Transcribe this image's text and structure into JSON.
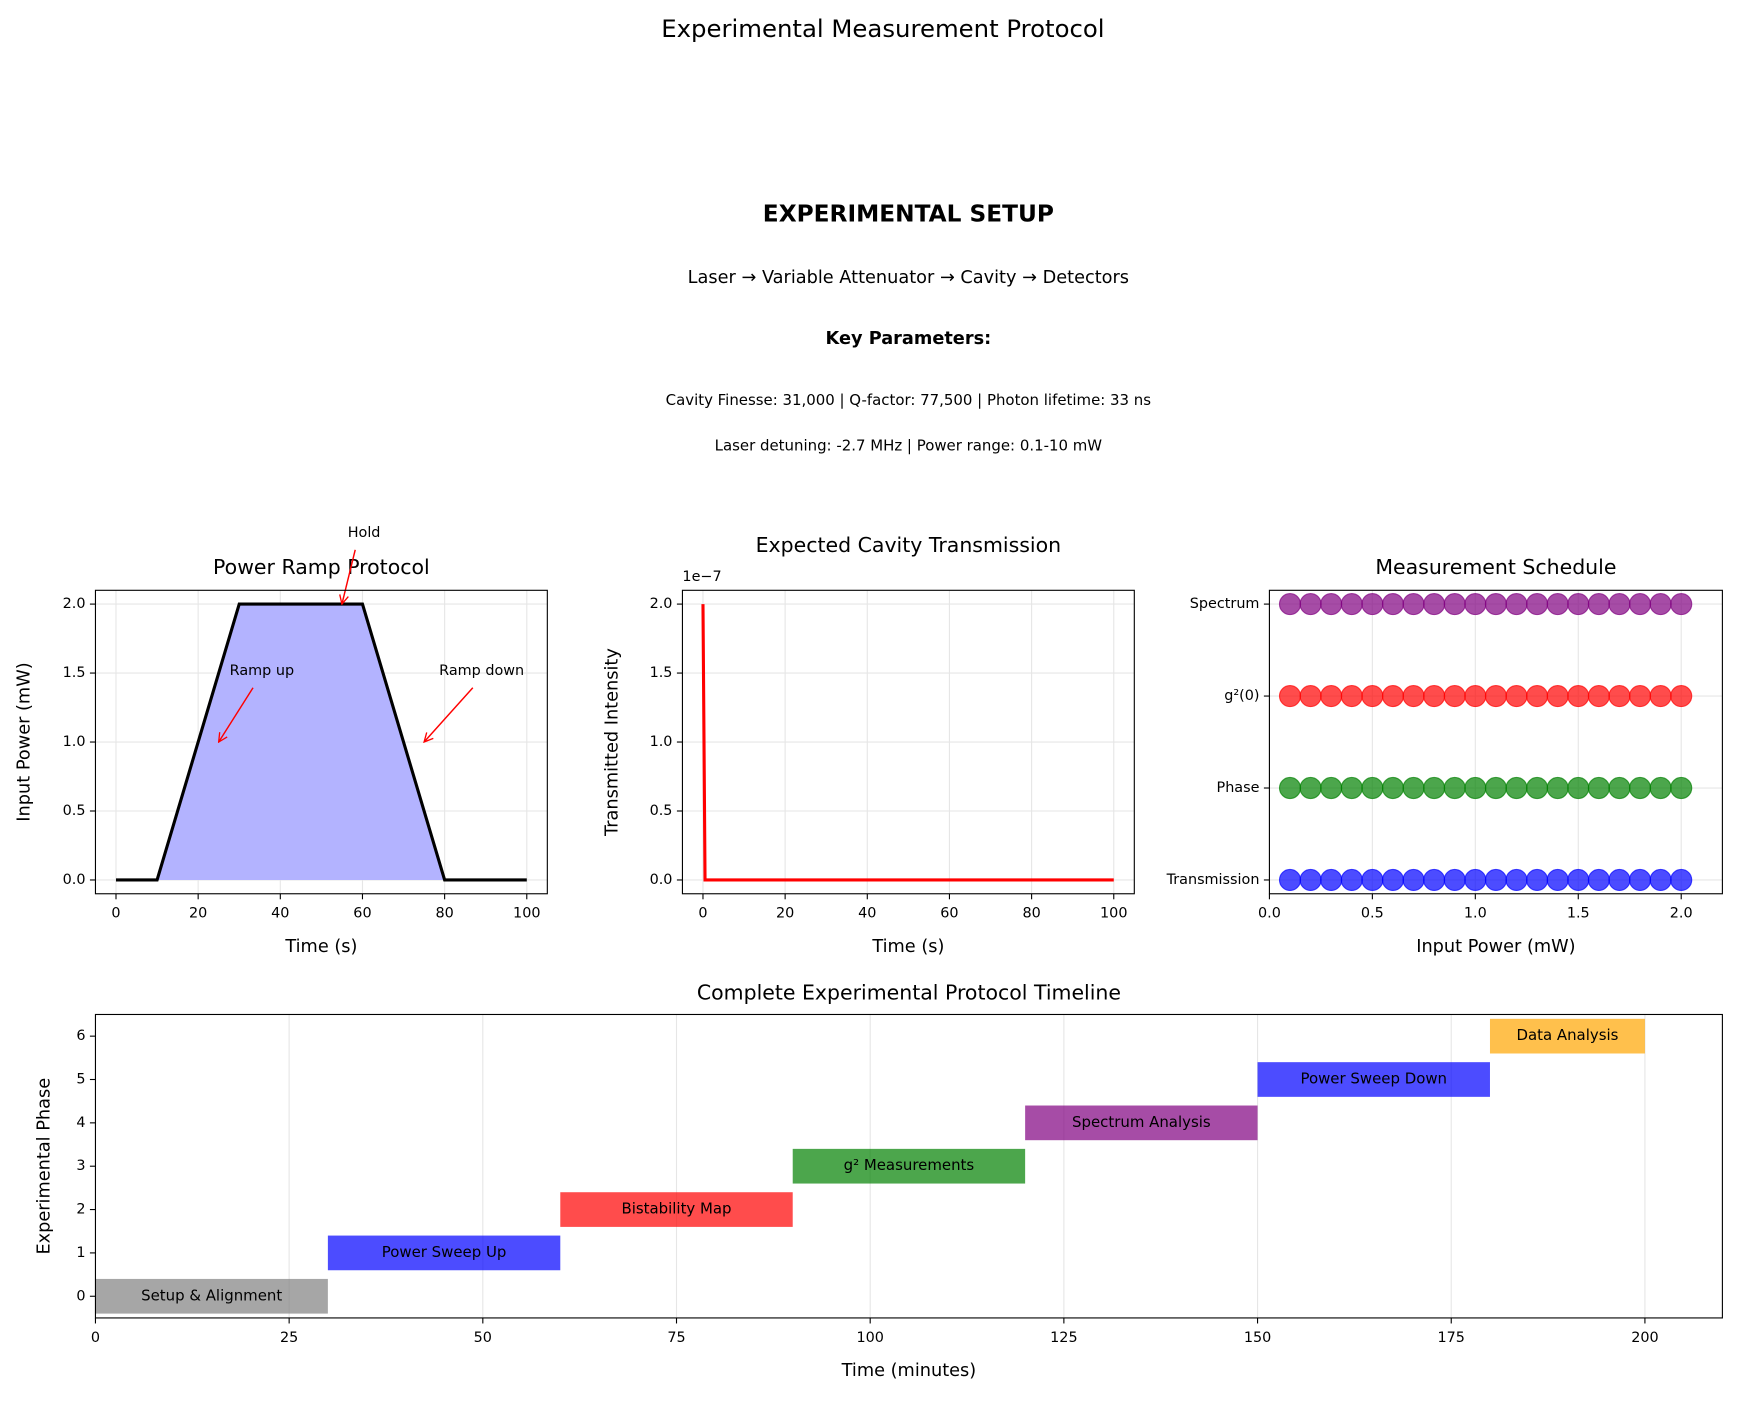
{
  "title": "Experimental Measurement Protocol",
  "setup": {
    "heading": "EXPERIMENTAL SETUP",
    "chain": "Laser → Variable Attenuator → Cavity → Detectors",
    "params_heading": "Key Parameters:",
    "params_lines": [
      "Cavity Finesse: 31,000 | Q-factor: 77,500 | Photon lifetime: 33 ns",
      "Laser detuning: -2.7 MHz | Power range: 0.1-10 mW"
    ]
  },
  "chart_data": [
    {
      "type": "line",
      "title": "Power Ramp Protocol",
      "xlabel": "Time (s)",
      "ylabel": "Input Power (mW)",
      "x": [
        0,
        10,
        30,
        60,
        80,
        100
      ],
      "y": [
        0,
        0,
        2,
        2,
        0,
        0
      ],
      "color": "#000000",
      "fill_color": "#b3b3ff",
      "xlim": [
        -5,
        105
      ],
      "ylim": [
        -0.1,
        2.1
      ],
      "xticks": [
        0,
        20,
        40,
        60,
        80,
        100
      ],
      "yticks": [
        {
          "value": 0,
          "label": "0.0"
        },
        {
          "value": 0.5,
          "label": "0.5"
        },
        {
          "value": 1,
          "label": "1.0"
        },
        {
          "value": 1.5,
          "label": "1.5"
        },
        {
          "value": 2,
          "label": "2.0"
        }
      ],
      "grid": "both",
      "annotations": [
        {
          "text": "Hold",
          "x": 55,
          "y": 2
        },
        {
          "text": "Ramp up",
          "x": 25,
          "y": 1
        },
        {
          "text": "Ramp down",
          "x": 75,
          "y": 1
        }
      ]
    },
    {
      "type": "line",
      "title": "Expected Cavity Transmission",
      "xlabel": "Time (s)",
      "ylabel": "Transmitted Intensity",
      "y_offset_label": "1e−7",
      "x": [
        0,
        0.5,
        100
      ],
      "y": [
        2e-07,
        0,
        0
      ],
      "color": "#ff0000",
      "xlim": [
        -5,
        105
      ],
      "ylim": [
        -1e-08,
        2.1e-07
      ],
      "xticks": [
        0,
        20,
        40,
        60,
        80,
        100
      ],
      "yticks": [
        {
          "value": 0,
          "label": "0.0"
        },
        {
          "value": 5e-08,
          "label": "0.5"
        },
        {
          "value": 1e-07,
          "label": "1.0"
        },
        {
          "value": 1.5e-07,
          "label": "1.5"
        },
        {
          "value": 2e-07,
          "label": "2.0"
        }
      ],
      "grid": "both"
    },
    {
      "type": "scatter",
      "title": "Measurement Schedule",
      "xlabel": "Input Power (mW)",
      "x": [
        0.1,
        0.2,
        0.3,
        0.4,
        0.5,
        0.6,
        0.7,
        0.8,
        0.9,
        1.0,
        1.1,
        1.2,
        1.3,
        1.4,
        1.5,
        1.6,
        1.7,
        1.8,
        1.9,
        2.0
      ],
      "series": [
        {
          "color": "#0000ff",
          "values": [
            0,
            0,
            0,
            0,
            0,
            0,
            0,
            0,
            0,
            0,
            0,
            0,
            0,
            0,
            0,
            0,
            0,
            0,
            0,
            0
          ]
        },
        {
          "color": "#008000",
          "values": [
            1,
            1,
            1,
            1,
            1,
            1,
            1,
            1,
            1,
            1,
            1,
            1,
            1,
            1,
            1,
            1,
            1,
            1,
            1,
            1
          ]
        },
        {
          "color": "#ff0000",
          "values": [
            2,
            2,
            2,
            2,
            2,
            2,
            2,
            2,
            2,
            2,
            2,
            2,
            2,
            2,
            2,
            2,
            2,
            2,
            2,
            2
          ]
        },
        {
          "color": "#800080",
          "values": [
            3,
            3,
            3,
            3,
            3,
            3,
            3,
            3,
            3,
            3,
            3,
            3,
            3,
            3,
            3,
            3,
            3,
            3,
            3,
            3
          ]
        }
      ],
      "xlim": [
        0,
        2.2
      ],
      "ylim": [
        -0.15,
        3.15
      ],
      "xticks": [
        {
          "value": 0,
          "label": "0.0"
        },
        {
          "value": 0.5,
          "label": "0.5"
        },
        {
          "value": 1,
          "label": "1.0"
        },
        {
          "value": 1.5,
          "label": "1.5"
        },
        {
          "value": 2,
          "label": "2.0"
        }
      ],
      "yticks": [
        {
          "value": 0,
          "label": "Transmission"
        },
        {
          "value": 1,
          "label": "Phase"
        },
        {
          "value": 2,
          "label": "g²(0)"
        },
        {
          "value": 3,
          "label": "Spectrum"
        }
      ],
      "grid": "both"
    },
    {
      "type": "gantt",
      "title": "Complete Experimental Protocol Timeline",
      "xlabel": "Time (minutes)",
      "ylabel": "Experimental Phase",
      "tasks": [
        {
          "name": "Setup & Alignment",
          "start": 0,
          "duration": 30,
          "color": "#808080"
        },
        {
          "name": "Power Sweep Up",
          "start": 30,
          "duration": 30,
          "color": "#0000ff"
        },
        {
          "name": "Bistability Map",
          "start": 60,
          "duration": 30,
          "color": "#ff0000"
        },
        {
          "name": "g² Measurements",
          "start": 90,
          "duration": 30,
          "color": "#008000"
        },
        {
          "name": "Spectrum Analysis",
          "start": 120,
          "duration": 30,
          "color": "#800080"
        },
        {
          "name": "Power Sweep Down",
          "start": 150,
          "duration": 30,
          "color": "#0000ff"
        },
        {
          "name": "Data Analysis",
          "start": 180,
          "duration": 20,
          "color": "#ffa500"
        }
      ],
      "xlim": [
        0,
        210
      ],
      "ylim": [
        -0.5,
        6.5
      ],
      "xticks": [
        0,
        25,
        50,
        75,
        100,
        125,
        150,
        175,
        200
      ],
      "yticks": [
        0,
        1,
        2,
        3,
        4,
        5,
        6
      ],
      "grid": "x"
    }
  ]
}
